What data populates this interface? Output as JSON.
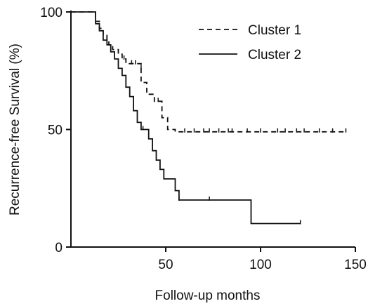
{
  "chart_data": {
    "type": "line",
    "xlabel": "Follow-up months",
    "ylabel": "Recurrence-free Survival (%)",
    "xlim": [
      0,
      150
    ],
    "ylim": [
      0,
      100
    ],
    "xticks": [
      50,
      100,
      150
    ],
    "yticks": [
      0,
      50,
      100
    ],
    "grid": false,
    "legend_position": "top-right",
    "series": [
      {
        "name": "Cluster 1",
        "style": "dashed",
        "color": "#111111",
        "x": [
          0,
          13,
          13,
          15,
          15,
          17,
          17,
          19,
          19,
          20,
          20,
          22,
          22,
          25,
          25,
          27,
          27,
          29,
          29,
          37,
          37,
          40,
          40,
          44,
          44,
          48,
          48,
          51,
          51,
          55,
          55,
          145
        ],
        "y": [
          100,
          100,
          96,
          96,
          93,
          93,
          90,
          90,
          88,
          88,
          86,
          86,
          84,
          84,
          82,
          82,
          80,
          80,
          78,
          78,
          70,
          70,
          65,
          65,
          62,
          62,
          55,
          55,
          50,
          50,
          49,
          49
        ],
        "censored": [
          [
            28,
            80
          ],
          [
            32,
            78
          ],
          [
            34,
            78
          ],
          [
            37,
            76
          ],
          [
            46,
            62
          ],
          [
            60,
            49
          ],
          [
            65,
            49
          ],
          [
            70,
            49
          ],
          [
            73,
            49
          ],
          [
            78,
            49
          ],
          [
            83,
            49
          ],
          [
            85,
            49
          ],
          [
            93,
            49
          ],
          [
            100,
            49
          ],
          [
            109,
            49
          ],
          [
            113,
            49
          ],
          [
            119,
            49
          ],
          [
            123,
            49
          ],
          [
            131,
            49
          ],
          [
            138,
            49
          ],
          [
            145,
            49
          ]
        ]
      },
      {
        "name": "Cluster 2",
        "style": "solid",
        "color": "#111111",
        "x": [
          0,
          13,
          13,
          15,
          15,
          17,
          17,
          19,
          19,
          21,
          21,
          23,
          23,
          25,
          25,
          27,
          27,
          29,
          29,
          31,
          31,
          33,
          33,
          35,
          35,
          37,
          37,
          41,
          41,
          43,
          43,
          45,
          45,
          47,
          47,
          49,
          49,
          55,
          55,
          57,
          57,
          95,
          95,
          121
        ],
        "y": [
          100,
          100,
          95,
          95,
          92,
          92,
          88,
          88,
          86,
          86,
          83,
          83,
          80,
          80,
          76,
          76,
          73,
          73,
          68,
          68,
          64,
          64,
          58,
          58,
          53,
          53,
          50,
          50,
          46,
          46,
          41,
          41,
          37,
          37,
          33,
          33,
          29,
          29,
          24,
          24,
          20,
          20,
          10,
          10
        ],
        "censored": [
          [
            38,
            50
          ],
          [
            57,
            20
          ],
          [
            73,
            20
          ],
          [
            121,
            10
          ]
        ]
      }
    ]
  }
}
